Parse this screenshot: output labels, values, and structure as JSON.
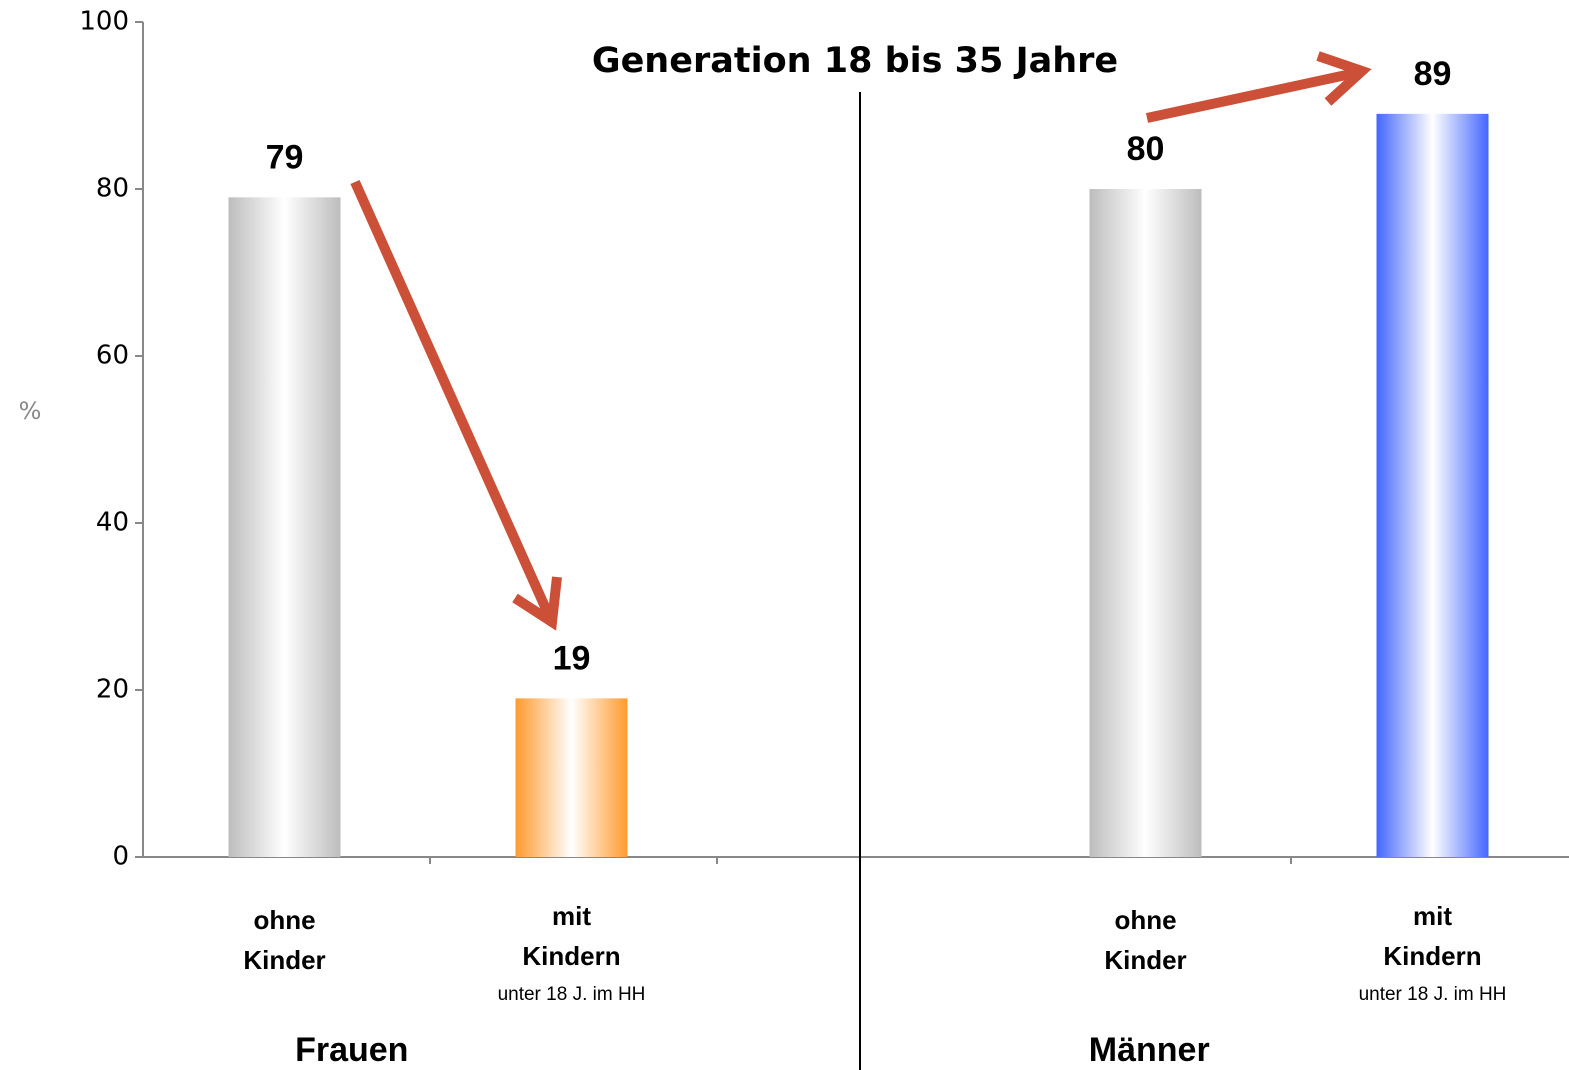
{
  "chart_data": {
    "type": "bar",
    "title": "Generation 18 bis 35 Jahre",
    "y_label": "%",
    "categories": [
      [
        "ohne",
        "Kinder"
      ],
      [
        "mit",
        "Kindern"
      ],
      null,
      [
        "ohne",
        "Kinder"
      ],
      [
        "mit",
        "Kindern"
      ]
    ],
    "category_notes": [
      null,
      "unter 18 J. im HH",
      null,
      null,
      "unter 18 J. im HH"
    ],
    "values": [
      79,
      19,
      null,
      80,
      89
    ],
    "colors": [
      "#bdbdbd",
      "#ff9a2e",
      null,
      "#bdbdbd",
      "#4466ff"
    ],
    "groups": [
      "Frauen",
      "Männer"
    ],
    "ylim": [
      0,
      100
    ],
    "yticks": [
      0,
      20,
      40,
      60,
      80,
      100
    ],
    "grid": false
  }
}
